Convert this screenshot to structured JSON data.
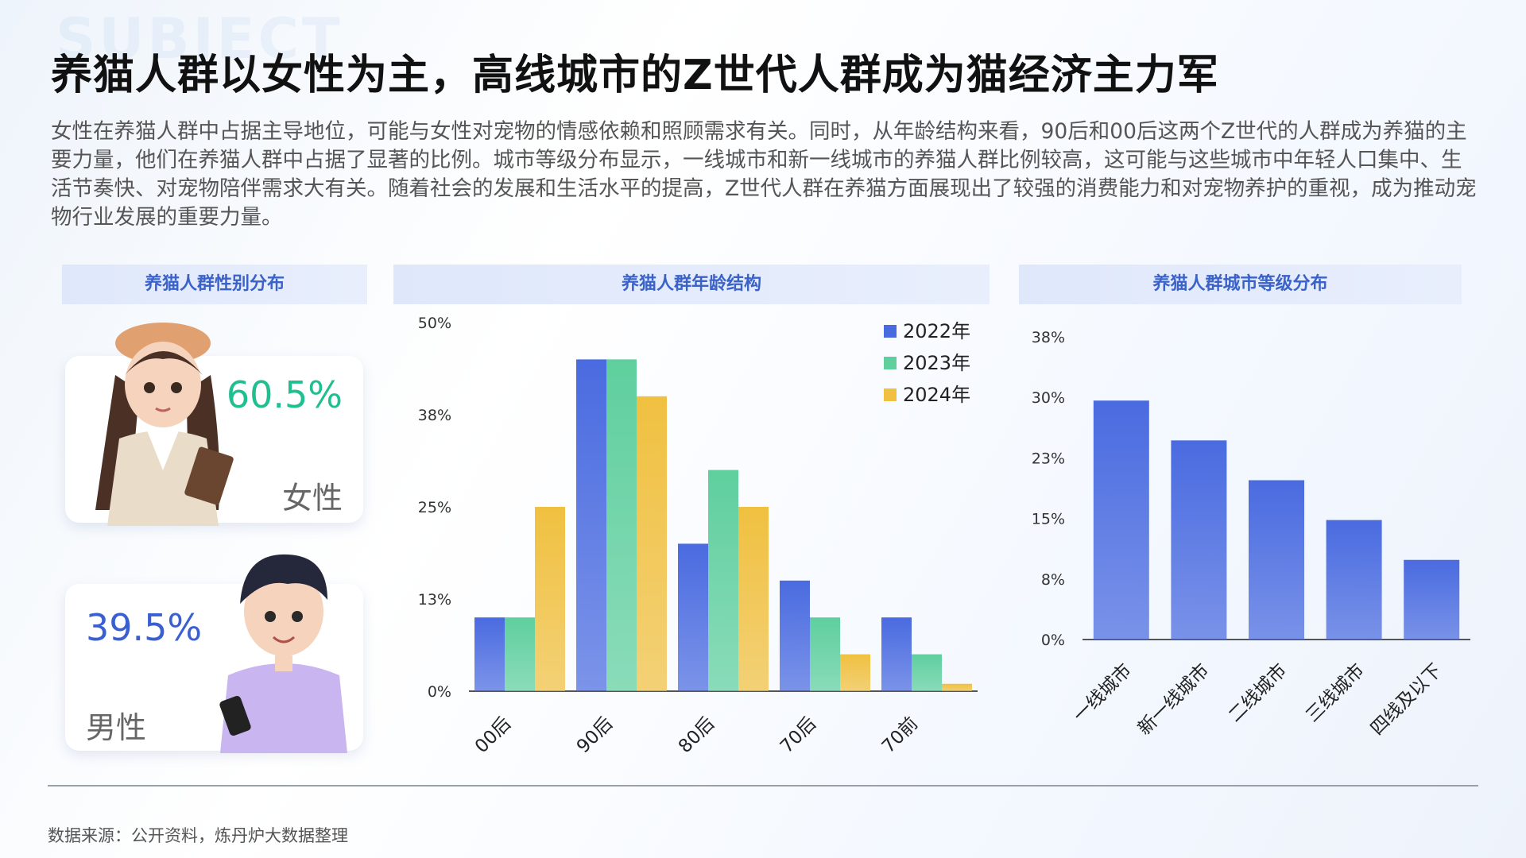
{
  "watermark": "SUBJECT",
  "title": "养猫人群以女性为主，高线城市的Z世代人群成为猫经济主力军",
  "intro": "女性在养猫人群中占据主导地位，可能与女性对宠物的情感依赖和照顾需求有关。同时，从年龄结构来看，90后和00后这两个Z世代的人群成为养猫的主要力量，他们在养猫人群中占据了显著的比例。城市等级分布显示，一线城市和新一线城市的养猫人群比例较高，这可能与这些城市中年轻人口集中、生活节奏快、对宠物陪伴需求大有关。随着社会的发展和生活水平的提高，Z世代人群在养猫方面展现出了较强的消费能力和对宠物养护的重视，成为推动宠物行业发展的重要力量。",
  "gender_panel": {
    "header": "养猫人群性别分布",
    "female": {
      "pct": "60.5%",
      "label": "女性",
      "color": "#1fbf8f"
    },
    "male": {
      "pct": "39.5%",
      "label": "男性",
      "color": "#3a5fd0"
    }
  },
  "age_panel": {
    "header": "养猫人群年龄结构"
  },
  "city_panel": {
    "header": "养猫人群城市等级分布"
  },
  "source": "数据来源：公开资料，炼丹炉大数据整理",
  "chart_data": [
    {
      "type": "bar",
      "categories": [
        "00后",
        "90后",
        "80后",
        "70后",
        "70前"
      ],
      "yticks": [
        "0%",
        "13%",
        "25%",
        "38%",
        "50%"
      ],
      "ylim": [
        0,
        50
      ],
      "legend": "top-right",
      "series": [
        {
          "name": "2022年",
          "values": [
            10,
            45,
            20,
            15,
            10
          ],
          "color": "#4a6be0"
        },
        {
          "name": "2023年",
          "values": [
            10,
            45,
            30,
            10,
            5
          ],
          "color": "#5fcf9e"
        },
        {
          "name": "2024年",
          "values": [
            25,
            40,
            25,
            5,
            1
          ],
          "color": "#f0c040"
        }
      ]
    },
    {
      "type": "bar",
      "categories": [
        "一线城市",
        "新一线城市",
        "二线城市",
        "三线城市",
        "四线及以下"
      ],
      "yticks": [
        "0%",
        "8%",
        "15%",
        "23%",
        "30%",
        "38%"
      ],
      "ylim": [
        0,
        38
      ],
      "values": [
        30,
        25,
        20,
        15,
        10
      ],
      "color": "#4a6be0"
    }
  ]
}
